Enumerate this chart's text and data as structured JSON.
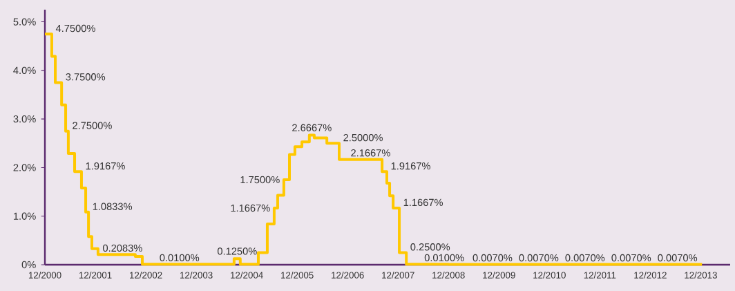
{
  "chart_data": {
    "type": "step",
    "x": [
      "2000-12-01",
      "2001-01-20",
      "2001-02-15",
      "2001-03-30",
      "2001-04-29",
      "2001-05-18",
      "2001-07-03",
      "2001-08-22",
      "2001-09-22",
      "2001-10-12",
      "2001-11-06",
      "2001-12-20",
      "2002-09-16",
      "2002-11-06",
      "2004-09-01",
      "2004-10-15",
      "2005-02-24",
      "2005-04-28",
      "2005-06-17",
      "2005-07-12",
      "2005-08-26",
      "2005-10-06",
      "2005-11-15",
      "2006-01-05",
      "2006-02-28",
      "2006-04-03",
      "2006-07-03",
      "2006-10-01",
      "2007-08-07",
      "2007-09-11",
      "2007-10-01",
      "2007-10-26",
      "2007-12-10",
      "2008-01-30",
      "2008-12-01",
      "2013-12-10"
    ],
    "series": [
      {
        "color": "#ffc800",
        "values": [
          4.75,
          4.29,
          3.75,
          3.29,
          2.75,
          2.29,
          1.9167,
          1.58,
          1.0833,
          0.58,
          0.33,
          0.2083,
          0.17,
          0.01,
          0.125,
          0.01,
          0.25,
          0.84,
          1.1667,
          1.43,
          1.75,
          2.27,
          2.43,
          2.53,
          2.6667,
          2.61,
          2.5,
          2.1667,
          1.9167,
          1.68,
          1.42,
          1.1667,
          0.25,
          0.01,
          0.007,
          0.007
        ]
      }
    ],
    "xlim": [
      "2000-12",
      "2014-07"
    ],
    "ylim": [
      0,
      5.25
    ],
    "xticks": [
      {
        "value": "2000-12",
        "label": "12/2000"
      },
      {
        "value": "2001-12",
        "label": "12/2001"
      },
      {
        "value": "2002-12",
        "label": "12/2002"
      },
      {
        "value": "2003-12",
        "label": "12/2003"
      },
      {
        "value": "2004-12",
        "label": "12/2004"
      },
      {
        "value": "2005-12",
        "label": "12/2005"
      },
      {
        "value": "2006-12",
        "label": "12/2006"
      },
      {
        "value": "2007-12",
        "label": "12/2007"
      },
      {
        "value": "2008-12",
        "label": "12/2008"
      },
      {
        "value": "2009-12",
        "label": "12/2009"
      },
      {
        "value": "2010-12",
        "label": "12/2010"
      },
      {
        "value": "2011-12",
        "label": "12/2011"
      },
      {
        "value": "2012-12",
        "label": "12/2012"
      },
      {
        "value": "2013-12",
        "label": "12/2013"
      }
    ],
    "yticks": [
      {
        "value": 0,
        "label": "0%"
      },
      {
        "value": 1,
        "label": "1.0%"
      },
      {
        "value": 2,
        "label": "2.0%"
      },
      {
        "value": 3,
        "label": "3.0%"
      },
      {
        "value": 4,
        "label": "4.0%"
      },
      {
        "value": 5,
        "label": "5.0%"
      }
    ],
    "annotations": [
      {
        "text": "4.7500%",
        "x": "2000-12-01",
        "y": 4.75
      },
      {
        "text": "3.7500%",
        "x": "2001-02-15",
        "y": 3.75
      },
      {
        "text": "2.7500%",
        "x": "2001-04-29",
        "y": 2.75
      },
      {
        "text": "1.9167%",
        "x": "2001-07-03",
        "y": 1.9167
      },
      {
        "text": "1.0833%",
        "x": "2001-09-22",
        "y": 1.0833
      },
      {
        "text": "0.2083%",
        "x": "2002-06-15",
        "y": 0.2083
      },
      {
        "text": "0.0100%",
        "x": "2003-08-01",
        "y": 0.01
      },
      {
        "text": "0.1250%",
        "x": "2004-09-20",
        "y": 0.125
      },
      {
        "text": "1.1667%",
        "x": "2005-06-17",
        "y": 1.1667
      },
      {
        "text": "1.7500%",
        "x": "2005-08-26",
        "y": 1.75
      },
      {
        "text": "2.6667%",
        "x": "2006-03-15",
        "y": 2.6667
      },
      {
        "text": "2.5000%",
        "x": "2006-07-03",
        "y": 2.5
      },
      {
        "text": "2.1667%",
        "x": "2007-05-15",
        "y": 2.1667
      },
      {
        "text": "1.9167%",
        "x": "2007-08-07",
        "y": 1.9167
      },
      {
        "text": "1.1667%",
        "x": "2007-10-26",
        "y": 1.1667
      },
      {
        "text": "0.2500%",
        "x": "2007-12-10",
        "y": 0.25
      },
      {
        "text": "0.0100%",
        "x": "2008-11-01",
        "y": 0.01
      },
      {
        "text": "0.0070%",
        "x": "2009-10-15",
        "y": 0.007
      },
      {
        "text": "0.0070%",
        "x": "2010-09-15",
        "y": 0.007
      },
      {
        "text": "0.0070%",
        "x": "2011-08-15",
        "y": 0.007
      },
      {
        "text": "0.0070%",
        "x": "2012-07-15",
        "y": 0.007
      },
      {
        "text": "0.0070%",
        "x": "2013-06-15",
        "y": 0.007
      }
    ]
  }
}
